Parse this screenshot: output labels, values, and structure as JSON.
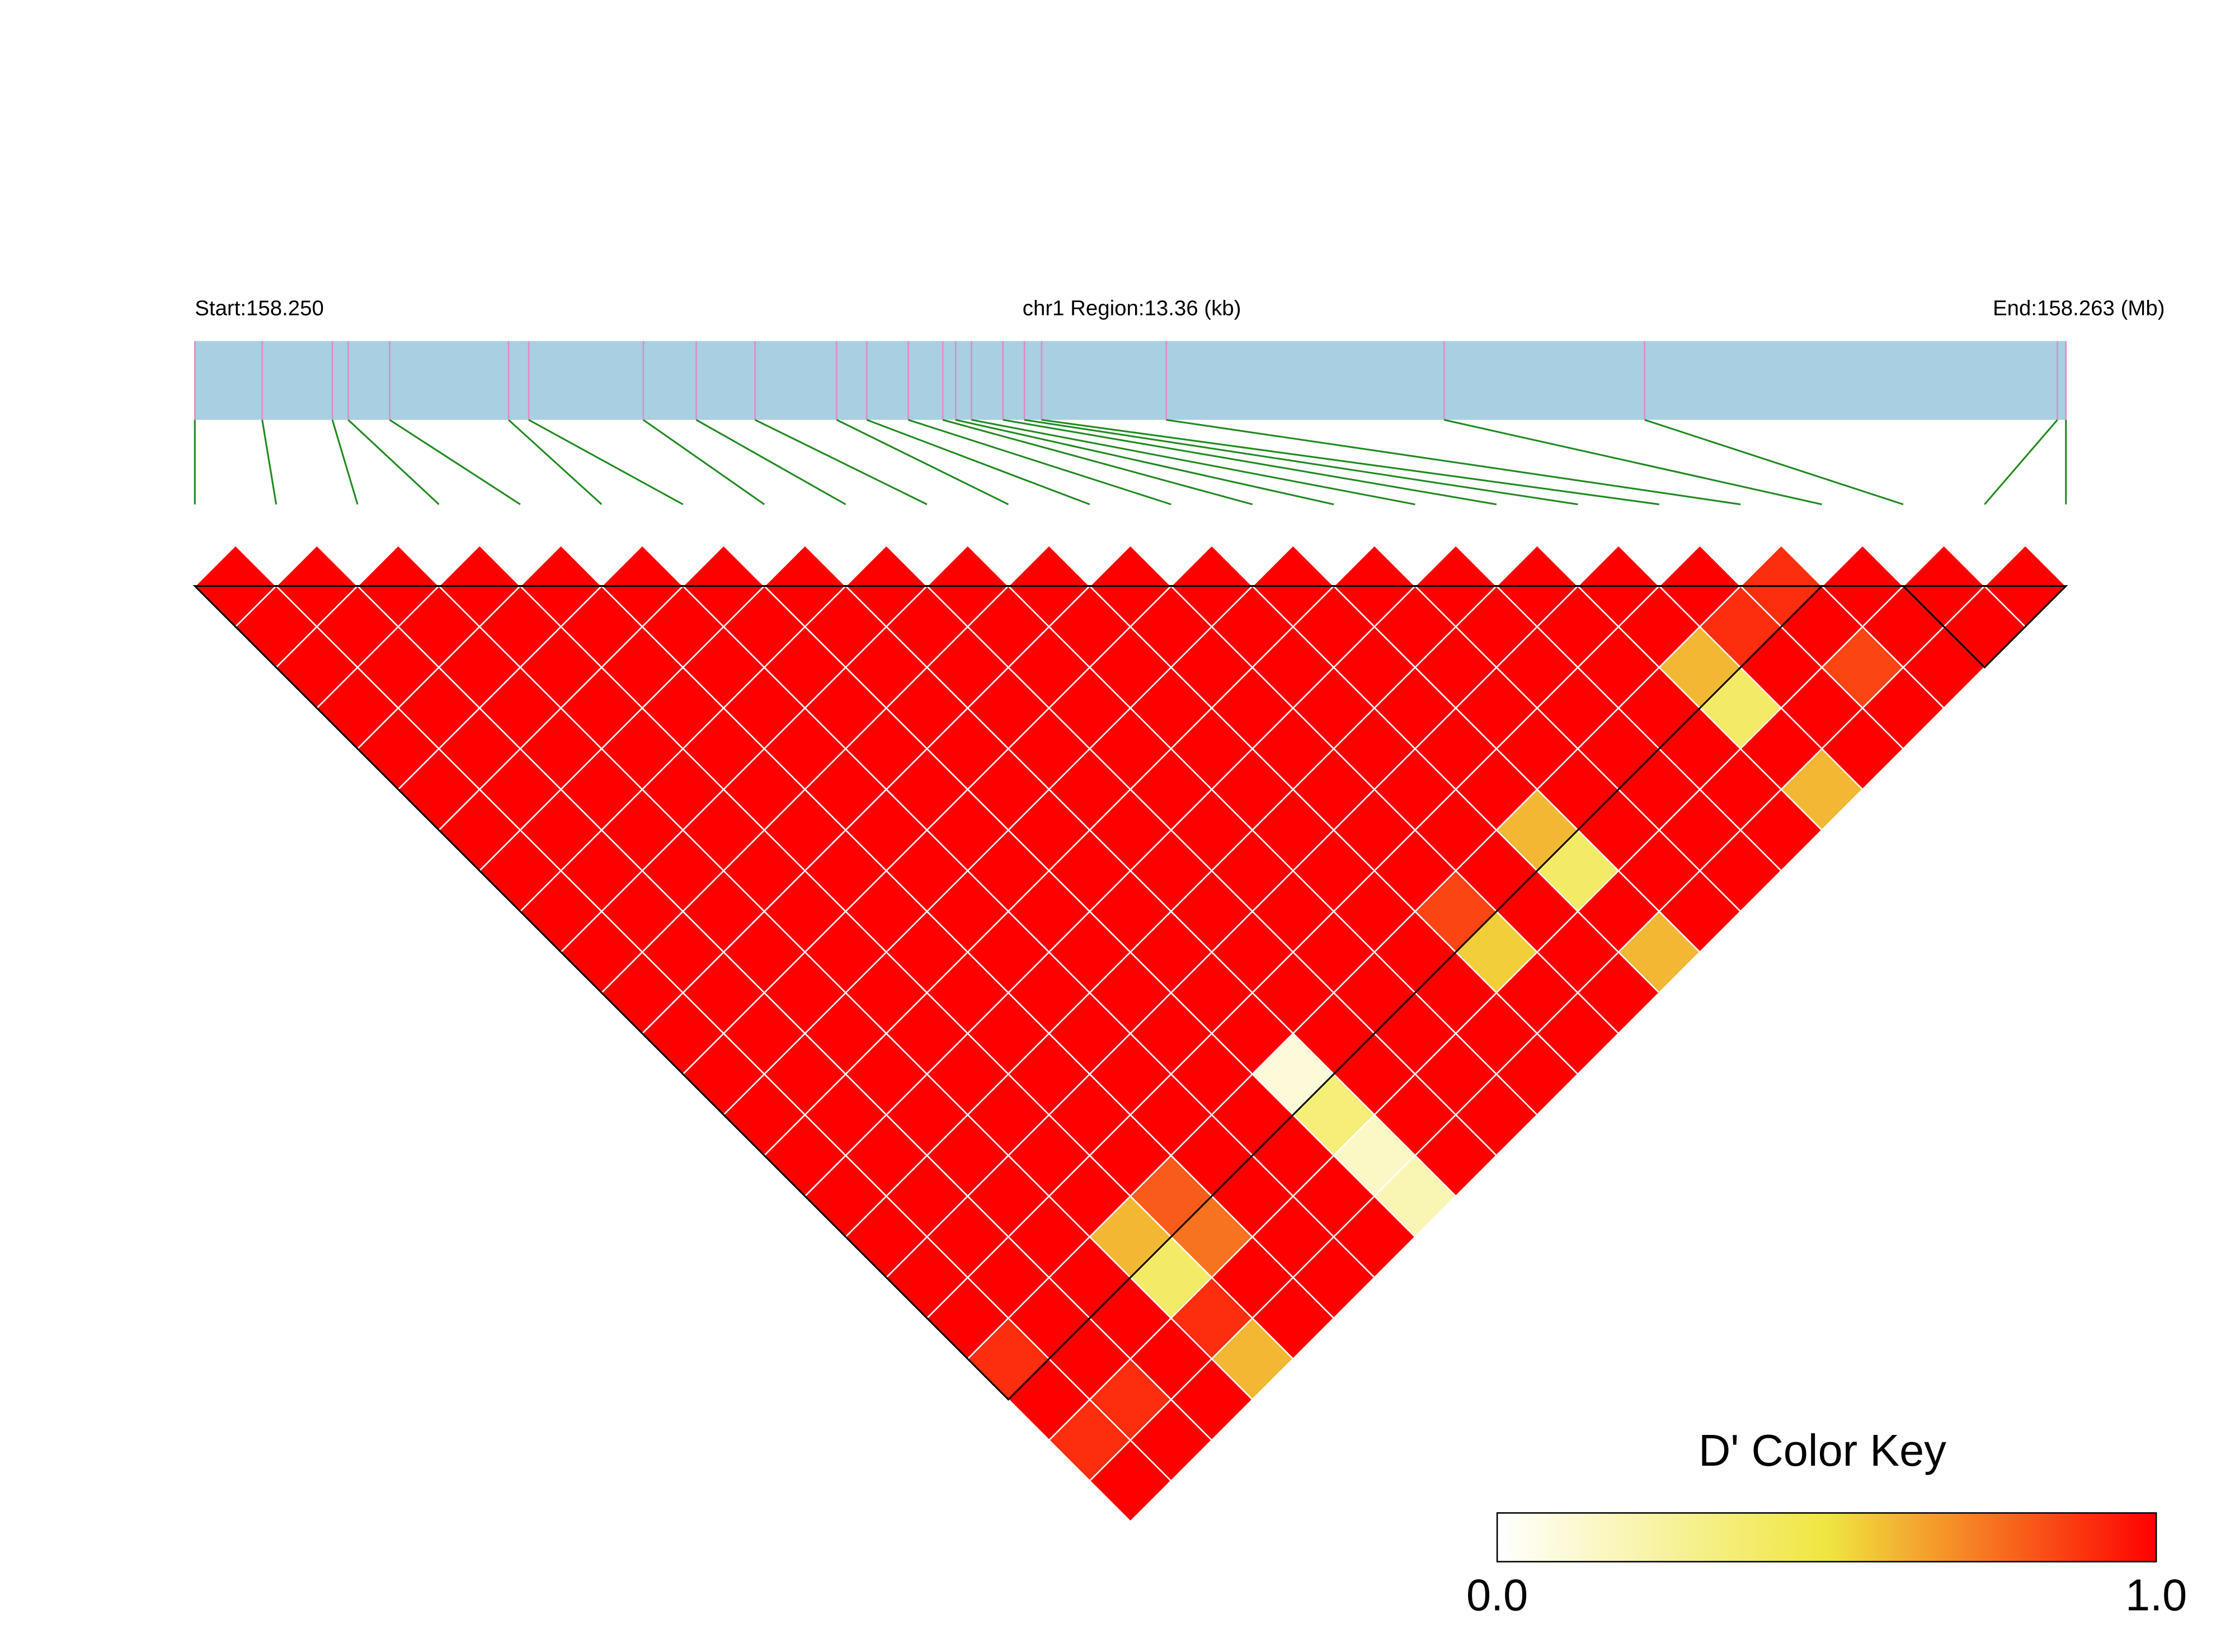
{
  "chart_data": {
    "type": "ld-heatmap",
    "start_label": "Start:158.250",
    "region_label": "chr1 Region:13.36 (kb)",
    "end_label": "End:158.263 (Mb)",
    "xlim": [
      0,
      13.36
    ],
    "snp_positions_kb": [
      0,
      0.481,
      0.982,
      1.095,
      1.391,
      2.24,
      2.384,
      3.202,
      3.58,
      4.0,
      4.583,
      4.798,
      5.094,
      5.34,
      5.432,
      5.545,
      5.77,
      5.923,
      6.046,
      6.936,
      8.92,
      10.352,
      13.299,
      13.36
    ],
    "dprime": [
      [
        1
      ],
      [
        1,
        1
      ],
      [
        1,
        1,
        1
      ],
      [
        1,
        1,
        1,
        1
      ],
      [
        1,
        1,
        1,
        1,
        1
      ],
      [
        1,
        1,
        1,
        1,
        1,
        1
      ],
      [
        1,
        1,
        1,
        1,
        1,
        1,
        1
      ],
      [
        1,
        1,
        1,
        1,
        1,
        1,
        1,
        1
      ],
      [
        1,
        1,
        1,
        1,
        1,
        1,
        1,
        1,
        1
      ],
      [
        1,
        1,
        1,
        1,
        1,
        1,
        1,
        1,
        1,
        1
      ],
      [
        1,
        1,
        1,
        1,
        1,
        1,
        1,
        1,
        1,
        1,
        1
      ],
      [
        1,
        1,
        1,
        1,
        1,
        1,
        1,
        1,
        1,
        1,
        1,
        1
      ],
      [
        1,
        1,
        1,
        1,
        1,
        1,
        1,
        1,
        1,
        1,
        1,
        1,
        1
      ],
      [
        1,
        1,
        1,
        1,
        1,
        1,
        1,
        1,
        1,
        1,
        1,
        1,
        1,
        1
      ],
      [
        1,
        1,
        1,
        1,
        1,
        1,
        1,
        1,
        1,
        1,
        1,
        1,
        1,
        1,
        1
      ],
      [
        1,
        1,
        1,
        1,
        1,
        1,
        1,
        1,
        1,
        1,
        1,
        1,
        1,
        1,
        1,
        1
      ],
      [
        1,
        1,
        1,
        1,
        1,
        1,
        1,
        1,
        1,
        1,
        1,
        1,
        1,
        1,
        1,
        1,
        1
      ],
      [
        1,
        1,
        1,
        1,
        1,
        1,
        1,
        1,
        1,
        1,
        1,
        1,
        1,
        1,
        1,
        1,
        1,
        1
      ],
      [
        1,
        1,
        1,
        1,
        1,
        1,
        1,
        1,
        1,
        1,
        1,
        1,
        1,
        1,
        1,
        1,
        1,
        1,
        1
      ],
      [
        0.9,
        1,
        1,
        0.6,
        0.8,
        1,
        1,
        0.1,
        1,
        1,
        1,
        0.85,
        1,
        0.6,
        1,
        1,
        1,
        0.6,
        0.9,
        0.9
      ],
      [
        1,
        1,
        1,
        0.4,
        0.75,
        1,
        1,
        0.35,
        1,
        1,
        1,
        0.55,
        1,
        0.4,
        1,
        1,
        1,
        0.4,
        1,
        1,
        1
      ],
      [
        0.9,
        0.9,
        1,
        0.9,
        1,
        1,
        1,
        0.15,
        1,
        1,
        1,
        1,
        1,
        1,
        1,
        1,
        1,
        1,
        1,
        0.85,
        1,
        1
      ],
      [
        1,
        1,
        1,
        0.6,
        1,
        1,
        1,
        0.2,
        1,
        1,
        1,
        1,
        1,
        0.6,
        1,
        1,
        1,
        0.6,
        1,
        1,
        1,
        1,
        1
      ]
    ],
    "blocks": [
      [
        0,
        20
      ],
      [
        21,
        23
      ]
    ],
    "color_scale": [
      "#ffffff",
      "#f0e640",
      "#ff0000"
    ],
    "bar_color": "#a8cfe2",
    "snp_line_color": "#e38ac4",
    "connector_color": "#1f8a1f",
    "color_key": {
      "title": "D' Color Key",
      "lim": [
        0,
        1
      ],
      "ticks": [
        {
          "value": 0,
          "label": "0.0"
        },
        {
          "value": 1,
          "label": "1.0"
        }
      ]
    }
  }
}
